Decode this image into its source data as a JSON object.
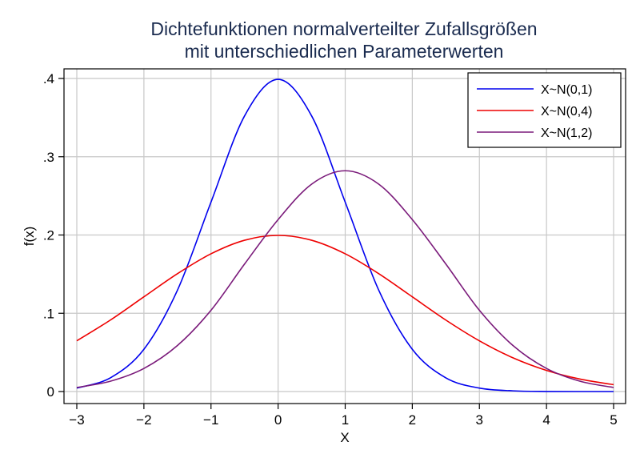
{
  "chart_data": {
    "type": "line",
    "title": [
      "Dichtefunktionen normalverteilter Zufallsgrößen",
      "mit unterschiedlichen Parameterwerten"
    ],
    "xlabel": "X",
    "ylabel": "f(x)",
    "xlim": [
      -3,
      5
    ],
    "ylim": [
      0,
      0.4
    ],
    "xticks": [
      -3,
      -2,
      -1,
      0,
      1,
      2,
      3,
      4,
      5
    ],
    "xtick_labels": [
      "−3",
      "−2",
      "−1",
      "0",
      "1",
      "2",
      "3",
      "4",
      "5"
    ],
    "yticks": [
      0,
      0.1,
      0.2,
      0.3,
      0.4
    ],
    "ytick_labels": [
      "0",
      ".1",
      ".2",
      ".3",
      ".4"
    ],
    "grid": true,
    "legend_position": "top-right",
    "x": [
      -3,
      -2.5,
      -2,
      -1.5,
      -1,
      -0.5,
      0,
      0.5,
      1,
      1.5,
      2,
      2.5,
      3,
      3.5,
      4,
      4.5,
      5
    ],
    "series": [
      {
        "name": "X~N(0,1)",
        "color": "#0000ee",
        "values": [
          0.0044,
          0.0175,
          0.054,
          0.1295,
          0.242,
          0.3521,
          0.3989,
          0.3521,
          0.242,
          0.1295,
          0.054,
          0.0175,
          0.0044,
          0.0009,
          0.0001,
          0.0,
          0.0
        ]
      },
      {
        "name": "X~N(0,4)",
        "color": "#ee0000",
        "values": [
          0.0648,
          0.0913,
          0.121,
          0.1506,
          0.176,
          0.1933,
          0.1995,
          0.1933,
          0.176,
          0.1506,
          0.121,
          0.0913,
          0.0648,
          0.0431,
          0.027,
          0.0159,
          0.0088
        ]
      },
      {
        "name": "X~N(1,2)",
        "color": "#7a1a7a",
        "values": [
          0.0052,
          0.0132,
          0.0295,
          0.0588,
          0.1038,
          0.1629,
          0.2197,
          0.265,
          0.2821,
          0.265,
          0.2197,
          0.1629,
          0.1038,
          0.0588,
          0.0295,
          0.0132,
          0.0052
        ]
      }
    ]
  }
}
